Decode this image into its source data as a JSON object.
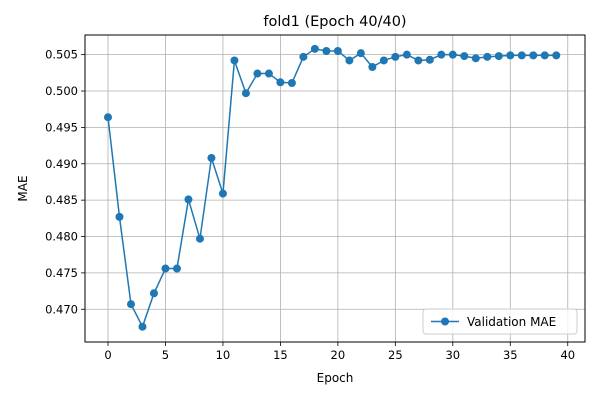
{
  "chart_data": {
    "type": "line",
    "title": "fold1 (Epoch 40/40)",
    "xlabel": "Epoch",
    "ylabel": "MAE",
    "xlim": [
      -2,
      41.5
    ],
    "ylim": [
      0.4655,
      0.5077
    ],
    "x_ticks": [
      0,
      5,
      10,
      15,
      20,
      25,
      30,
      35,
      40
    ],
    "y_ticks": [
      0.47,
      0.475,
      0.48,
      0.485,
      0.49,
      0.495,
      0.5,
      0.505
    ],
    "y_tick_decimals": 3,
    "grid": true,
    "legend_position": "lower-right",
    "series": [
      {
        "name": "Validation MAE",
        "color": "#1f77b4",
        "marker": "circle",
        "x": [
          0,
          1,
          2,
          3,
          4,
          5,
          6,
          7,
          8,
          9,
          10,
          11,
          12,
          13,
          14,
          15,
          16,
          17,
          18,
          19,
          20,
          21,
          22,
          23,
          24,
          25,
          26,
          27,
          28,
          29,
          30,
          31,
          32,
          33,
          34,
          35,
          36,
          37,
          38,
          39
        ],
        "y": [
          0.4964,
          0.4827,
          0.4707,
          0.4676,
          0.4722,
          0.4756,
          0.4756,
          0.4851,
          0.4797,
          0.4908,
          0.4859,
          0.5042,
          0.4997,
          0.5024,
          0.5024,
          0.5012,
          0.5011,
          0.5047,
          0.5058,
          0.5055,
          0.5055,
          0.5042,
          0.5052,
          0.5033,
          0.5042,
          0.5047,
          0.505,
          0.5042,
          0.5043,
          0.505,
          0.505,
          0.5048,
          0.5045,
          0.5047,
          0.5048,
          0.5049,
          0.5049,
          0.5049,
          0.5049,
          0.5049
        ]
      }
    ]
  }
}
